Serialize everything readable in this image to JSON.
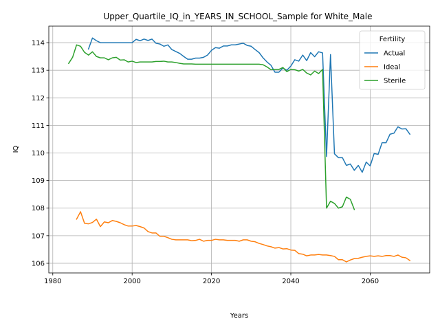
{
  "chart_data": {
    "type": "line",
    "title": "Upper_Quartile_IQ_in_YEARS_IN_SCHOOL_Sample for White_Male",
    "xlabel": "Years",
    "ylabel": "IQ",
    "xlim": [
      1979,
      2075
    ],
    "ylim": [
      105.65,
      114.6
    ],
    "x_ticks": [
      1980,
      2000,
      2020,
      2040,
      2060
    ],
    "y_ticks": [
      106,
      107,
      108,
      109,
      110,
      111,
      112,
      113,
      114
    ],
    "grid": true,
    "legend": {
      "title": "Fertility",
      "position": "top-right"
    },
    "series": [
      {
        "name": "Actual",
        "color": "#1f77b4",
        "points": [
          [
            1989,
            113.77
          ],
          [
            1990,
            114.17
          ],
          [
            1991,
            114.07
          ],
          [
            1992,
            114.0
          ],
          [
            1993,
            114.0
          ],
          [
            1994,
            114.0
          ],
          [
            1995,
            114.0
          ],
          [
            1996,
            114.0
          ],
          [
            1997,
            114.0
          ],
          [
            1998,
            114.0
          ],
          [
            1999,
            114.0
          ],
          [
            2000,
            114.0
          ],
          [
            2001,
            114.12
          ],
          [
            2002,
            114.07
          ],
          [
            2003,
            114.13
          ],
          [
            2004,
            114.08
          ],
          [
            2005,
            114.13
          ],
          [
            2006,
            113.98
          ],
          [
            2007,
            113.95
          ],
          [
            2008,
            113.87
          ],
          [
            2009,
            113.92
          ],
          [
            2010,
            113.75
          ],
          [
            2011,
            113.68
          ],
          [
            2012,
            113.61
          ],
          [
            2013,
            113.5
          ],
          [
            2014,
            113.4
          ],
          [
            2015,
            113.4
          ],
          [
            2016,
            113.44
          ],
          [
            2017,
            113.44
          ],
          [
            2018,
            113.47
          ],
          [
            2019,
            113.55
          ],
          [
            2020,
            113.72
          ],
          [
            2021,
            113.82
          ],
          [
            2022,
            113.8
          ],
          [
            2023,
            113.88
          ],
          [
            2024,
            113.88
          ],
          [
            2025,
            113.92
          ],
          [
            2026,
            113.92
          ],
          [
            2027,
            113.95
          ],
          [
            2028,
            113.98
          ],
          [
            2029,
            113.9
          ],
          [
            2030,
            113.87
          ],
          [
            2031,
            113.75
          ],
          [
            2032,
            113.64
          ],
          [
            2033,
            113.45
          ],
          [
            2034,
            113.3
          ],
          [
            2035,
            113.18
          ],
          [
            2036,
            112.93
          ],
          [
            2037,
            112.93
          ],
          [
            2038,
            113.08
          ],
          [
            2039,
            113.0
          ],
          [
            2040,
            113.15
          ],
          [
            2041,
            113.38
          ],
          [
            2042,
            113.33
          ],
          [
            2043,
            113.55
          ],
          [
            2044,
            113.35
          ],
          [
            2045,
            113.64
          ],
          [
            2046,
            113.49
          ],
          [
            2047,
            113.67
          ],
          [
            2048,
            113.63
          ],
          [
            2049,
            109.87
          ],
          [
            2050,
            113.57
          ],
          [
            2051,
            109.97
          ],
          [
            2052,
            109.83
          ],
          [
            2053,
            109.83
          ],
          [
            2054,
            109.55
          ],
          [
            2055,
            109.6
          ],
          [
            2056,
            109.37
          ],
          [
            2057,
            109.55
          ],
          [
            2058,
            109.3
          ],
          [
            2059,
            109.67
          ],
          [
            2060,
            109.53
          ],
          [
            2061,
            109.98
          ],
          [
            2062,
            109.95
          ],
          [
            2063,
            110.37
          ],
          [
            2064,
            110.37
          ],
          [
            2065,
            110.68
          ],
          [
            2066,
            110.72
          ],
          [
            2067,
            110.95
          ],
          [
            2068,
            110.87
          ],
          [
            2069,
            110.88
          ],
          [
            2070,
            110.68
          ]
        ]
      },
      {
        "name": "Ideal",
        "color": "#ff7f0e",
        "points": [
          [
            1986,
            107.6
          ],
          [
            1987,
            107.87
          ],
          [
            1988,
            107.45
          ],
          [
            1989,
            107.43
          ],
          [
            1990,
            107.48
          ],
          [
            1991,
            107.6
          ],
          [
            1992,
            107.33
          ],
          [
            1993,
            107.5
          ],
          [
            1994,
            107.47
          ],
          [
            1995,
            107.55
          ],
          [
            1996,
            107.52
          ],
          [
            1997,
            107.47
          ],
          [
            1998,
            107.4
          ],
          [
            1999,
            107.35
          ],
          [
            2000,
            107.35
          ],
          [
            2001,
            107.37
          ],
          [
            2002,
            107.33
          ],
          [
            2003,
            107.28
          ],
          [
            2004,
            107.15
          ],
          [
            2005,
            107.1
          ],
          [
            2006,
            107.1
          ],
          [
            2007,
            106.98
          ],
          [
            2008,
            106.98
          ],
          [
            2009,
            106.93
          ],
          [
            2010,
            106.87
          ],
          [
            2011,
            106.85
          ],
          [
            2012,
            106.85
          ],
          [
            2013,
            106.85
          ],
          [
            2014,
            106.85
          ],
          [
            2015,
            106.82
          ],
          [
            2016,
            106.83
          ],
          [
            2017,
            106.87
          ],
          [
            2018,
            106.8
          ],
          [
            2019,
            106.83
          ],
          [
            2020,
            106.83
          ],
          [
            2021,
            106.87
          ],
          [
            2022,
            106.85
          ],
          [
            2023,
            106.85
          ],
          [
            2024,
            106.83
          ],
          [
            2025,
            106.83
          ],
          [
            2026,
            106.83
          ],
          [
            2027,
            106.8
          ],
          [
            2028,
            106.85
          ],
          [
            2029,
            106.85
          ],
          [
            2030,
            106.8
          ],
          [
            2031,
            106.78
          ],
          [
            2032,
            106.72
          ],
          [
            2033,
            106.68
          ],
          [
            2034,
            106.63
          ],
          [
            2035,
            106.6
          ],
          [
            2036,
            106.55
          ],
          [
            2037,
            106.57
          ],
          [
            2038,
            106.52
          ],
          [
            2039,
            106.53
          ],
          [
            2040,
            106.48
          ],
          [
            2041,
            106.47
          ],
          [
            2042,
            106.35
          ],
          [
            2043,
            106.33
          ],
          [
            2044,
            106.27
          ],
          [
            2045,
            106.3
          ],
          [
            2046,
            106.3
          ],
          [
            2047,
            106.32
          ],
          [
            2048,
            106.3
          ],
          [
            2049,
            106.3
          ],
          [
            2050,
            106.28
          ],
          [
            2051,
            106.25
          ],
          [
            2052,
            106.13
          ],
          [
            2053,
            106.13
          ],
          [
            2054,
            106.05
          ],
          [
            2055,
            106.12
          ],
          [
            2056,
            106.17
          ],
          [
            2057,
            106.18
          ],
          [
            2058,
            106.22
          ],
          [
            2059,
            106.25
          ],
          [
            2060,
            106.27
          ],
          [
            2061,
            106.25
          ],
          [
            2062,
            106.27
          ],
          [
            2063,
            106.25
          ],
          [
            2064,
            106.28
          ],
          [
            2065,
            106.28
          ],
          [
            2066,
            106.25
          ],
          [
            2067,
            106.3
          ],
          [
            2068,
            106.22
          ],
          [
            2069,
            106.2
          ],
          [
            2070,
            106.1
          ]
        ]
      },
      {
        "name": "Sterile",
        "color": "#2ca02c",
        "points": [
          [
            1984,
            113.25
          ],
          [
            1985,
            113.47
          ],
          [
            1986,
            113.92
          ],
          [
            1987,
            113.87
          ],
          [
            1988,
            113.65
          ],
          [
            1989,
            113.55
          ],
          [
            1990,
            113.67
          ],
          [
            1991,
            113.5
          ],
          [
            1992,
            113.45
          ],
          [
            1993,
            113.45
          ],
          [
            1994,
            113.38
          ],
          [
            1995,
            113.45
          ],
          [
            1996,
            113.47
          ],
          [
            1997,
            113.37
          ],
          [
            1998,
            113.38
          ],
          [
            1999,
            113.3
          ],
          [
            2000,
            113.33
          ],
          [
            2001,
            113.28
          ],
          [
            2002,
            113.3
          ],
          [
            2003,
            113.3
          ],
          [
            2004,
            113.3
          ],
          [
            2005,
            113.3
          ],
          [
            2006,
            113.32
          ],
          [
            2007,
            113.32
          ],
          [
            2008,
            113.33
          ],
          [
            2009,
            113.3
          ],
          [
            2010,
            113.3
          ],
          [
            2011,
            113.28
          ],
          [
            2012,
            113.25
          ],
          [
            2013,
            113.23
          ],
          [
            2014,
            113.23
          ],
          [
            2015,
            113.23
          ],
          [
            2016,
            113.22
          ],
          [
            2017,
            113.22
          ],
          [
            2018,
            113.22
          ],
          [
            2019,
            113.22
          ],
          [
            2020,
            113.22
          ],
          [
            2021,
            113.22
          ],
          [
            2022,
            113.22
          ],
          [
            2023,
            113.22
          ],
          [
            2024,
            113.22
          ],
          [
            2025,
            113.22
          ],
          [
            2026,
            113.22
          ],
          [
            2027,
            113.22
          ],
          [
            2028,
            113.22
          ],
          [
            2029,
            113.22
          ],
          [
            2030,
            113.22
          ],
          [
            2031,
            113.22
          ],
          [
            2032,
            113.22
          ],
          [
            2033,
            113.2
          ],
          [
            2034,
            113.12
          ],
          [
            2035,
            113.02
          ],
          [
            2036,
            113.03
          ],
          [
            2037,
            113.03
          ],
          [
            2038,
            113.1
          ],
          [
            2039,
            112.95
          ],
          [
            2040,
            113.03
          ],
          [
            2041,
            113.02
          ],
          [
            2042,
            112.97
          ],
          [
            2043,
            113.03
          ],
          [
            2044,
            112.9
          ],
          [
            2045,
            112.83
          ],
          [
            2046,
            112.97
          ],
          [
            2047,
            112.88
          ],
          [
            2048,
            113.03
          ],
          [
            2049,
            108.0
          ],
          [
            2050,
            108.25
          ],
          [
            2051,
            108.17
          ],
          [
            2052,
            108.0
          ],
          [
            2053,
            108.05
          ],
          [
            2054,
            108.4
          ],
          [
            2055,
            108.32
          ],
          [
            2056,
            107.95
          ]
        ]
      }
    ]
  }
}
